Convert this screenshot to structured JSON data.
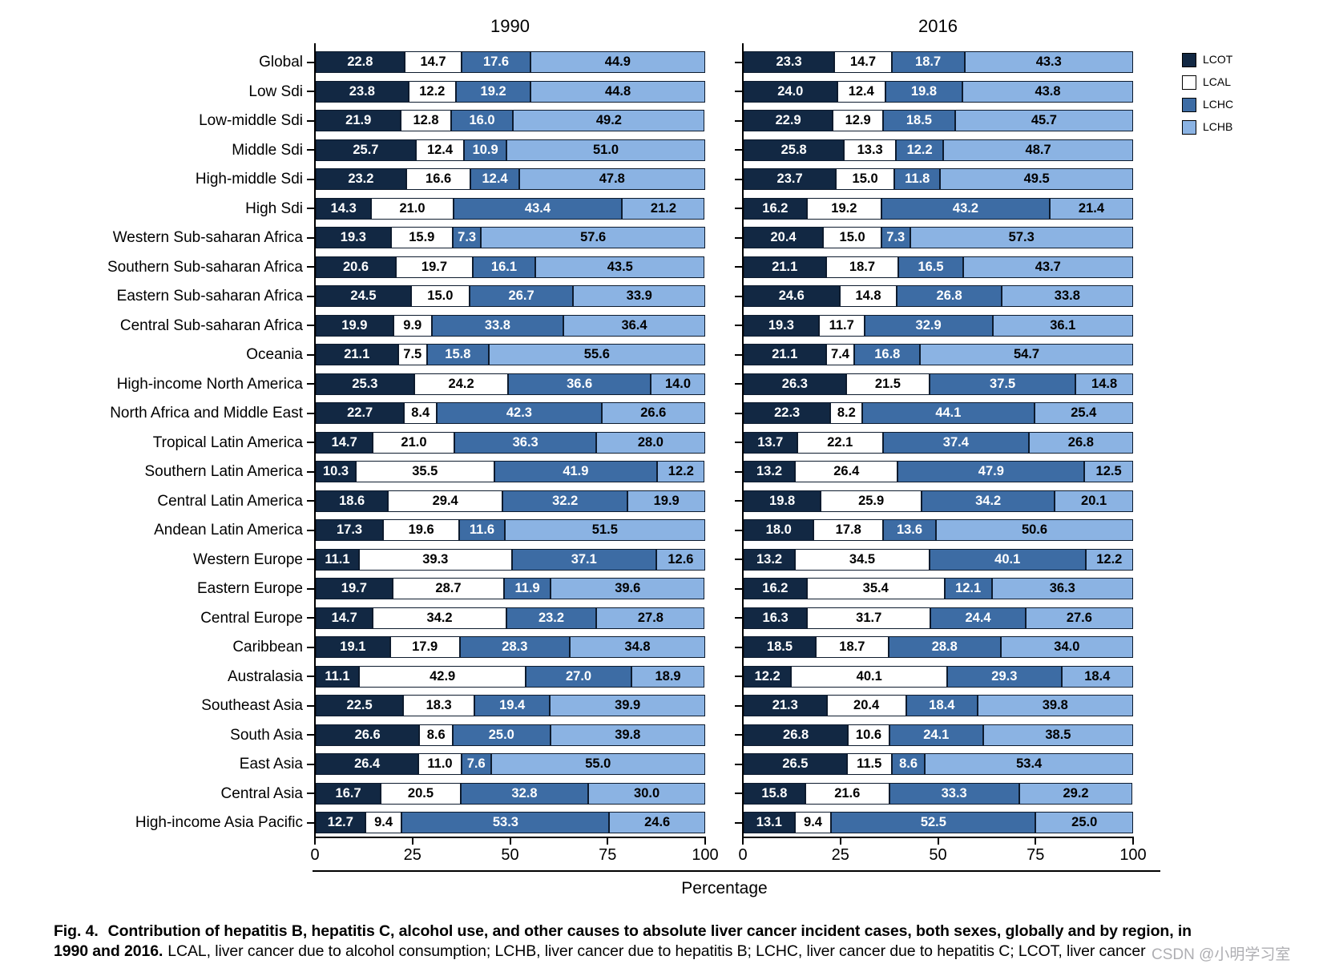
{
  "figure": {
    "caption_fig_label": "Fig. 4.",
    "caption_line1_bold": "Contribution of hepatitis B, hepatitis C, alcohol use, and other causes to absolute liver cancer incident cases, both sexes, globally and by region, in",
    "caption_line2_bold": "1990 and 2016.",
    "caption_line2_regular": "LCAL, liver cancer due to alcohol consumption; LCHB, liver cancer due to hepatitis B; LCHC, liver cancer due to hepatitis C; LCOT, liver cancer",
    "watermark": "CSDN @小明学习室"
  },
  "chart_data": {
    "type": "bar",
    "orientation": "horizontal",
    "stacked": true,
    "xlabel": "Percentage",
    "xlim": [
      0,
      100
    ],
    "x_ticks": [
      0,
      25,
      50,
      75,
      100
    ],
    "grid": false,
    "legend_position": "top-right",
    "series": [
      {
        "key": "LCOT",
        "color": "#122843",
        "text_color": "#ffffff"
      },
      {
        "key": "LCAL",
        "color": "#ffffff",
        "text_color": "#000000"
      },
      {
        "key": "LCHC",
        "color": "#3d6ca4",
        "text_color": "#ffffff"
      },
      {
        "key": "LCHB",
        "color": "#8bb3e3",
        "text_color": "#000000"
      }
    ],
    "categories": [
      "Global",
      "Low Sdi",
      "Low-middle Sdi",
      "Middle Sdi",
      "High-middle Sdi",
      "High Sdi",
      "Western Sub-saharan Africa",
      "Southern Sub-saharan Africa",
      "Eastern Sub-saharan Africa",
      "Central Sub-saharan Africa",
      "Oceania",
      "High-income North America",
      "North Africa and Middle East",
      "Tropical Latin America",
      "Southern Latin America",
      "Central Latin America",
      "Andean Latin America",
      "Western Europe",
      "Eastern Europe",
      "Central Europe",
      "Caribbean",
      "Australasia",
      "Southeast Asia",
      "South Asia",
      "East Asia",
      "Central Asia",
      "High-income Asia Pacific"
    ],
    "panels": [
      {
        "title": "1990",
        "values": [
          [
            22.8,
            14.7,
            17.6,
            44.9
          ],
          [
            23.8,
            12.2,
            19.2,
            44.8
          ],
          [
            21.9,
            12.8,
            16.0,
            49.2
          ],
          [
            25.7,
            12.4,
            10.9,
            51.0
          ],
          [
            23.2,
            16.6,
            12.4,
            47.8
          ],
          [
            14.3,
            21.0,
            43.4,
            21.2
          ],
          [
            19.3,
            15.9,
            7.3,
            57.6
          ],
          [
            20.6,
            19.7,
            16.1,
            43.5
          ],
          [
            24.5,
            15.0,
            26.7,
            33.9
          ],
          [
            19.9,
            9.9,
            33.8,
            36.4
          ],
          [
            21.1,
            7.5,
            15.8,
            55.6
          ],
          [
            25.3,
            24.2,
            36.6,
            14.0
          ],
          [
            22.7,
            8.4,
            42.3,
            26.6
          ],
          [
            14.7,
            21.0,
            36.3,
            28.0
          ],
          [
            10.3,
            35.5,
            41.9,
            12.2
          ],
          [
            18.6,
            29.4,
            32.2,
            19.9
          ],
          [
            17.3,
            19.6,
            11.6,
            51.5
          ],
          [
            11.1,
            39.3,
            37.1,
            12.6
          ],
          [
            19.7,
            28.7,
            11.9,
            39.6
          ],
          [
            14.7,
            34.2,
            23.2,
            27.8
          ],
          [
            19.1,
            17.9,
            28.3,
            34.8
          ],
          [
            11.1,
            42.9,
            27.0,
            18.9
          ],
          [
            22.5,
            18.3,
            19.4,
            39.9
          ],
          [
            26.6,
            8.6,
            25.0,
            39.8
          ],
          [
            26.4,
            11.0,
            7.6,
            55.0
          ],
          [
            16.7,
            20.5,
            32.8,
            30.0
          ],
          [
            12.7,
            9.4,
            53.3,
            24.6
          ]
        ]
      },
      {
        "title": "2016",
        "values": [
          [
            23.3,
            14.7,
            18.7,
            43.3
          ],
          [
            24.0,
            12.4,
            19.8,
            43.8
          ],
          [
            22.9,
            12.9,
            18.5,
            45.7
          ],
          [
            25.8,
            13.3,
            12.2,
            48.7
          ],
          [
            23.7,
            15.0,
            11.8,
            49.5
          ],
          [
            16.2,
            19.2,
            43.2,
            21.4
          ],
          [
            20.4,
            15.0,
            7.3,
            57.3
          ],
          [
            21.1,
            18.7,
            16.5,
            43.7
          ],
          [
            24.6,
            14.8,
            26.8,
            33.8
          ],
          [
            19.3,
            11.7,
            32.9,
            36.1
          ],
          [
            21.1,
            7.4,
            16.8,
            54.7
          ],
          [
            26.3,
            21.5,
            37.5,
            14.8
          ],
          [
            22.3,
            8.2,
            44.1,
            25.4
          ],
          [
            13.7,
            22.1,
            37.4,
            26.8
          ],
          [
            13.2,
            26.4,
            47.9,
            12.5
          ],
          [
            19.8,
            25.9,
            34.2,
            20.1
          ],
          [
            18.0,
            17.8,
            13.6,
            50.6
          ],
          [
            13.2,
            34.5,
            40.1,
            12.2
          ],
          [
            16.2,
            35.4,
            12.1,
            36.3
          ],
          [
            16.3,
            31.7,
            24.4,
            27.6
          ],
          [
            18.5,
            18.7,
            28.8,
            34.0
          ],
          [
            12.2,
            40.1,
            29.3,
            18.4
          ],
          [
            21.3,
            20.4,
            18.4,
            39.8
          ],
          [
            26.8,
            10.6,
            24.1,
            38.5
          ],
          [
            26.5,
            11.5,
            8.6,
            53.4
          ],
          [
            15.8,
            21.6,
            33.3,
            29.2
          ],
          [
            13.1,
            9.4,
            52.5,
            25.0
          ]
        ]
      }
    ]
  }
}
